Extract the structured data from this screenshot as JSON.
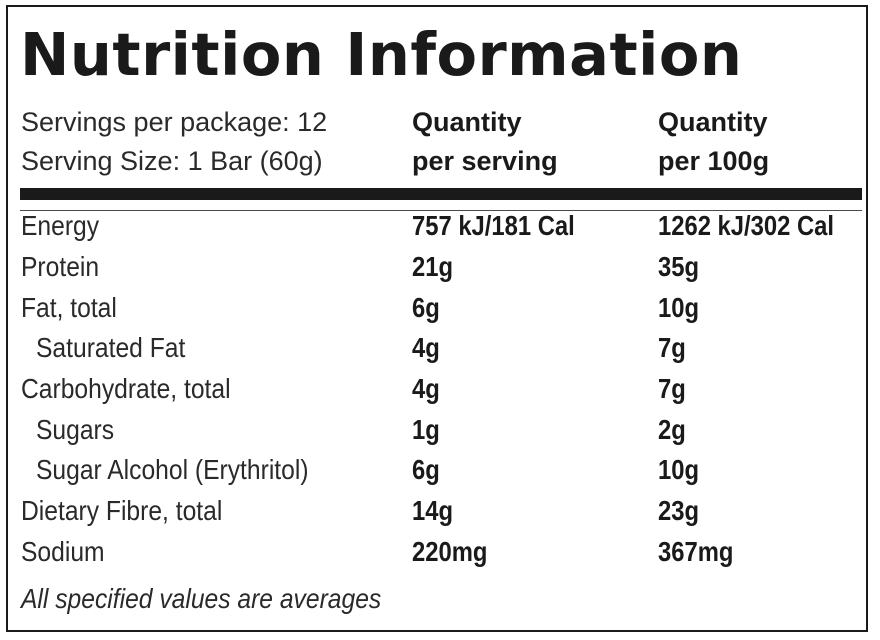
{
  "title": "Nutrition Information",
  "servings_per_package": "Servings per package: 12",
  "serving_size": "Serving Size: 1 Bar (60g)",
  "columns": {
    "per_serving_line1": "Quantity",
    "per_serving_line2": "per serving",
    "per_100g_line1": "Quantity",
    "per_100g_line2": "per 100g"
  },
  "rows": [
    {
      "label": "Energy",
      "per_serving": "757 kJ/181 Cal",
      "per_100g": "1262 kJ/302 Cal"
    },
    {
      "label": "Protein",
      "per_serving": "21g",
      "per_100g": "35g"
    },
    {
      "label": "Fat, total",
      "per_serving": "6g",
      "per_100g": "10g"
    },
    {
      "label": "Saturated Fat",
      "per_serving": "4g",
      "per_100g": "7g"
    },
    {
      "label": "Carbohydrate, total",
      "per_serving": "4g",
      "per_100g": "7g"
    },
    {
      "label": "Sugars",
      "per_serving": "1g",
      "per_100g": "2g"
    },
    {
      "label": "Sugar Alcohol (Erythritol)",
      "per_serving": "6g",
      "per_100g": "10g"
    },
    {
      "label": "Dietary Fibre, total",
      "per_serving": "14g",
      "per_100g": "23g"
    },
    {
      "label": "Sodium",
      "per_serving": "220mg",
      "per_100g": "367mg"
    }
  ],
  "footnote": "All specified values are averages"
}
